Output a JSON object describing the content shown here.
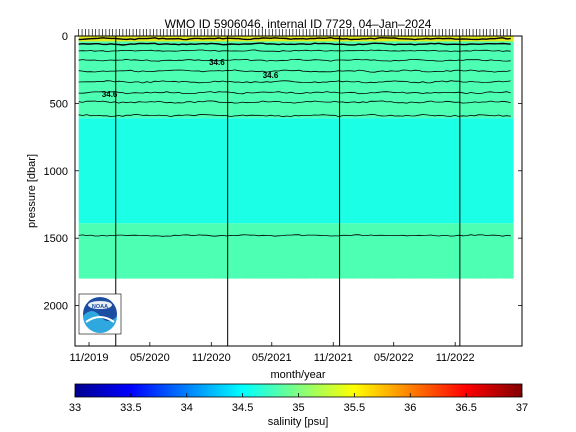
{
  "chart_data": [
    {
      "type": "heatmap",
      "title": "WMO ID 5906046, internal ID 7729, 04–Jan–2024",
      "xlabel": "month/year",
      "ylabel": "pressure [dbar]",
      "x_tick_labels": [
        "11/2019",
        "05/2020",
        "11/2020",
        "05/2021",
        "11/2021",
        "05/2022",
        "11/2022"
      ],
      "x_ticks": [
        "2019-11-01",
        "2020-05-01",
        "2020-11-01",
        "2021-05-01",
        "2021-11-01",
        "2022-05-01",
        "2022-11-01"
      ],
      "xlim": [
        "2019-09-20",
        "2023-05-20"
      ],
      "y_ticks": [
        0,
        500,
        1000,
        1500,
        2000
      ],
      "ylim": [
        2300,
        0
      ],
      "y_reversed": true,
      "max_profile_depth": 1800,
      "cycle_lines": [
        "2020-01-20",
        "2020-12-20",
        "2021-11-20",
        "2022-11-15"
      ],
      "contour_labels": [
        "34.6",
        "34.6",
        "34.6"
      ],
      "isohaline_depths": [
        20,
        60,
        110,
        180,
        260,
        340,
        420,
        490,
        590,
        1480
      ],
      "zones": [
        {
          "salinity": 34.8,
          "from": 0,
          "to": 610
        },
        {
          "salinity": 34.6,
          "from": 610,
          "to": 1390
        },
        {
          "salinity": 34.8,
          "from": 1390,
          "to": 1800
        }
      ],
      "near_surface_salinity": 35.6,
      "grid": false,
      "logo": "noaa-logo"
    },
    {
      "type": "colorbar",
      "label": "salinity [psu]",
      "range": [
        33,
        37
      ],
      "ticks": [
        "33",
        "33.5",
        "34",
        "34.5",
        "35",
        "35.5",
        "36",
        "36.5",
        "37"
      ],
      "colormap": [
        "#00008f",
        "#0000ff",
        "#0080ff",
        "#00ffff",
        "#80ff80",
        "#ffff00",
        "#ff8000",
        "#ff0000",
        "#800000"
      ]
    }
  ]
}
